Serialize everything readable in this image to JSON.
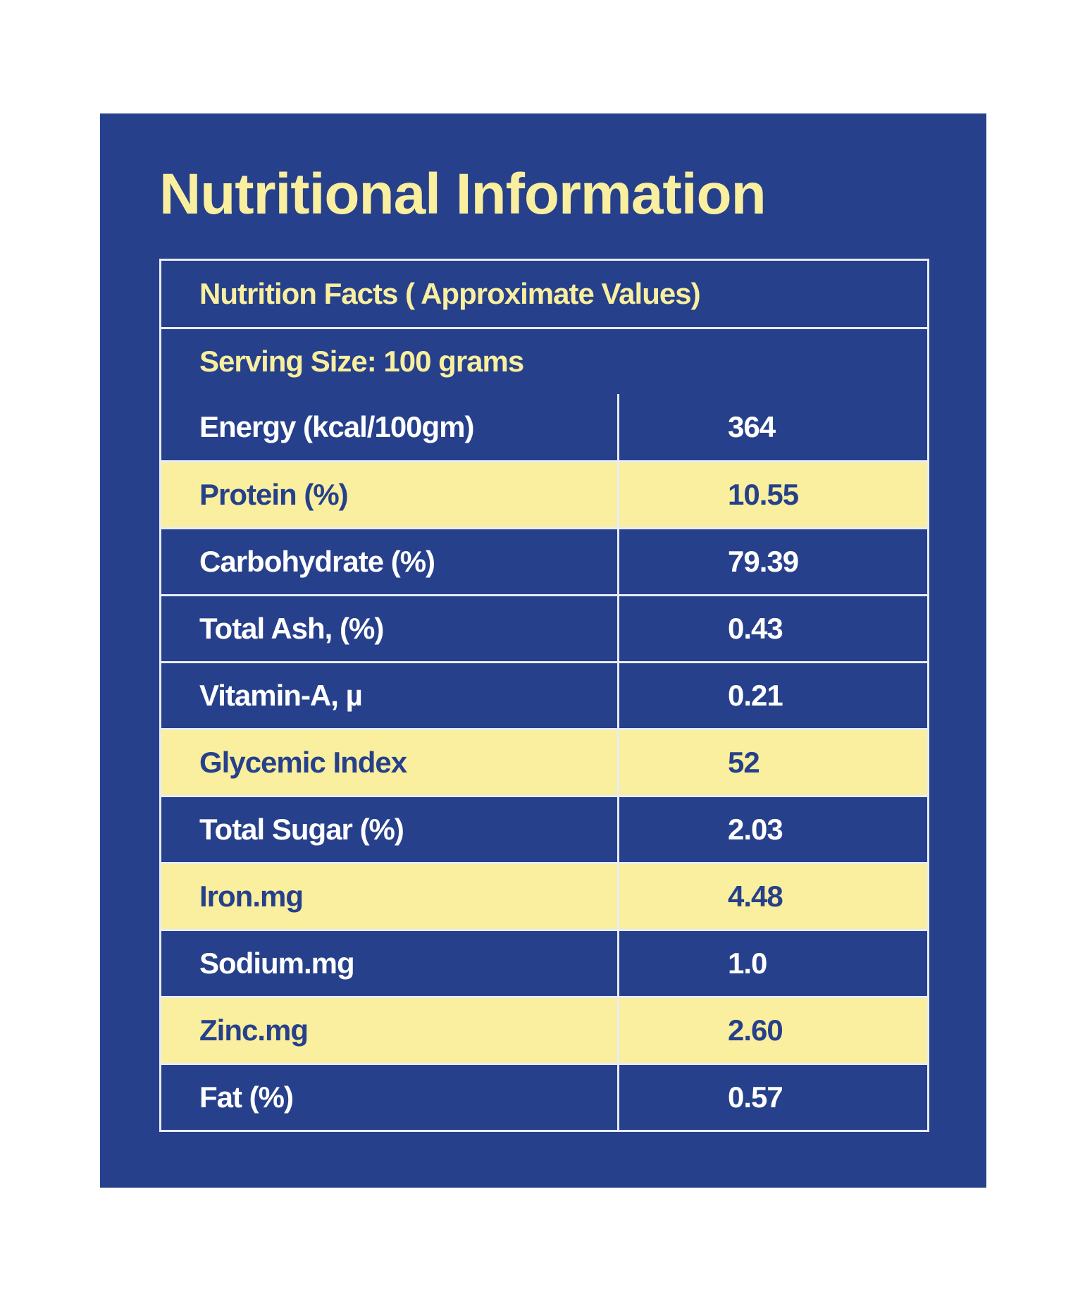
{
  "title": "Nutritional Information",
  "table": {
    "heading": "Nutrition Facts ( Approximate Values)",
    "serving": "Serving Size: 100 grams",
    "rows": [
      {
        "label": "Energy (kcal/100gm)",
        "value": "364",
        "style": "dark"
      },
      {
        "label": "Protein (%)",
        "value": "10.55",
        "style": "light"
      },
      {
        "label": "Carbohydrate (%)",
        "value": "79.39",
        "style": "dark"
      },
      {
        "label": "Total Ash, (%)",
        "value": "0.43",
        "style": "dark"
      },
      {
        "label": "Vitamin-A, µ",
        "value": "0.21",
        "style": "dark"
      },
      {
        "label": "Glycemic Index",
        "value": "52",
        "style": "light"
      },
      {
        "label": "Total Sugar (%)",
        "value": "2.03",
        "style": "dark"
      },
      {
        "label": "Iron.mg",
        "value": "4.48",
        "style": "light"
      },
      {
        "label": "Sodium.mg",
        "value": "1.0",
        "style": "dark"
      },
      {
        "label": "Zinc.mg",
        "value": "2.60",
        "style": "light"
      },
      {
        "label": "Fat (%)",
        "value": "0.57",
        "style": "dark"
      }
    ]
  },
  "colors": {
    "panel": "#26408b",
    "accent": "#f9ef9e",
    "border": "#e8ecf6"
  }
}
